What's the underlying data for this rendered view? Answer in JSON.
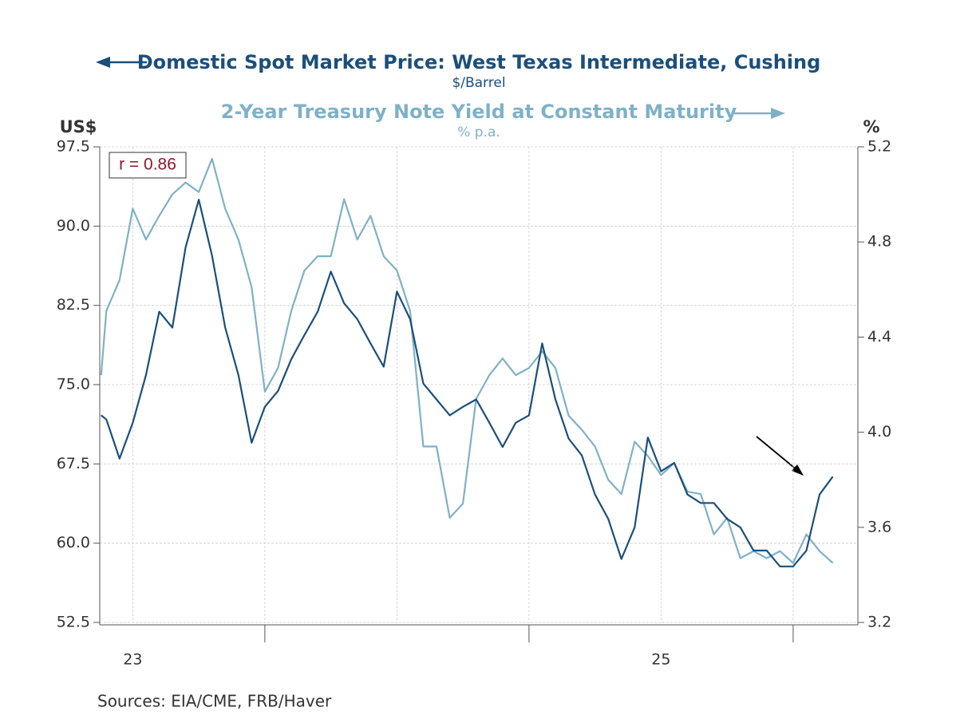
{
  "chart_data": {
    "type": "line",
    "title": "Domestic Spot Market Price: West Texas Intermediate, Cushing",
    "title_unit": "$/Barrel",
    "subtitle": "2-Year Treasury Note Yield at Constant Maturity",
    "subtitle_unit": "% p.a.",
    "ylabel": "US$",
    "y2label": "%",
    "annotation": "r = 0.86",
    "source": "Sources:  EIA/CME, FRB/Haver",
    "x": [
      2023.38,
      2023.4,
      2023.45,
      2023.5,
      2023.55,
      2023.6,
      2023.65,
      2023.7,
      2023.75,
      2023.8,
      2023.85,
      2023.9,
      2023.95,
      2024.0,
      2024.05,
      2024.1,
      2024.15,
      2024.2,
      2024.25,
      2024.3,
      2024.35,
      2024.4,
      2024.45,
      2024.5,
      2024.55,
      2024.6,
      2024.65,
      2024.7,
      2024.75,
      2024.8,
      2024.85,
      2024.9,
      2024.95,
      2025.0,
      2025.05,
      2025.1,
      2025.15,
      2025.2,
      2025.25,
      2025.3,
      2025.35,
      2025.4,
      2025.45,
      2025.5,
      2025.55,
      2025.6,
      2025.65,
      2025.7,
      2025.75,
      2025.8,
      2025.85,
      2025.9,
      2025.95,
      2026.0,
      2026.05,
      2026.1,
      2026.15
    ],
    "series": [
      {
        "name": "Domestic Spot Market Price: West Texas Intermediate, Cushing",
        "color": "#1b4f7a",
        "axis": "y",
        "values": [
          72.1,
          71.7,
          68.0,
          71.4,
          75.9,
          81.9,
          80.4,
          88.0,
          92.5,
          87.2,
          80.4,
          75.9,
          69.5,
          72.9,
          74.4,
          77.4,
          79.7,
          81.9,
          85.7,
          82.7,
          81.2,
          78.9,
          76.7,
          83.8,
          81.2,
          75.1,
          73.6,
          72.1,
          72.9,
          73.6,
          71.4,
          69.1,
          71.4,
          72.1,
          78.9,
          73.6,
          69.9,
          68.3,
          64.6,
          62.3,
          58.5,
          61.5,
          70.0,
          66.8,
          67.6,
          64.6,
          63.8,
          63.8,
          62.3,
          61.5,
          59.3,
          59.3,
          57.8,
          57.8,
          59.3,
          64.6,
          66.3
        ]
      },
      {
        "name": "2-Year Treasury Note Yield at Constant Maturity",
        "color": "#7fb1c6",
        "axis": "y2",
        "values": [
          4.24,
          4.51,
          4.64,
          4.94,
          4.81,
          4.91,
          5.0,
          5.05,
          5.01,
          5.15,
          4.94,
          4.81,
          4.61,
          4.17,
          4.27,
          4.51,
          4.68,
          4.74,
          4.74,
          4.98,
          4.81,
          4.91,
          4.74,
          4.68,
          4.51,
          3.94,
          3.94,
          3.64,
          3.7,
          4.14,
          4.24,
          4.31,
          4.24,
          4.27,
          4.34,
          4.27,
          4.07,
          4.01,
          3.94,
          3.8,
          3.74,
          3.96,
          3.9,
          3.82,
          3.87,
          3.75,
          3.74,
          3.57,
          3.64,
          3.47,
          3.5,
          3.47,
          3.5,
          3.45,
          3.57,
          3.5,
          3.45
        ]
      }
    ],
    "xlim": [
      2023.375,
      2026.245
    ],
    "xticks": [
      2023.5,
      2024,
      2024.5,
      2025,
      2025.5,
      2026
    ],
    "xmajor": [
      2024,
      2025,
      2026
    ],
    "xtick_labels": [
      {
        "value": 2023.5,
        "label": "23"
      },
      {
        "value": 2025.5,
        "label": "25"
      }
    ],
    "ylim": [
      52.5,
      97.5
    ],
    "yticks": [
      52.5,
      {
        "value": 60,
        "label": "60.0"
      },
      67.5,
      {
        "value": 75,
        "label": "75.0"
      },
      82.5,
      {
        "value": 90,
        "label": "90.0"
      },
      97.5
    ],
    "y2lim": [
      3.2,
      5.2
    ],
    "y2ticks": [
      3.2,
      3.6,
      {
        "value": 4,
        "label": "4.0"
      },
      4.4,
      4.8,
      5.2
    ],
    "grid": true
  }
}
